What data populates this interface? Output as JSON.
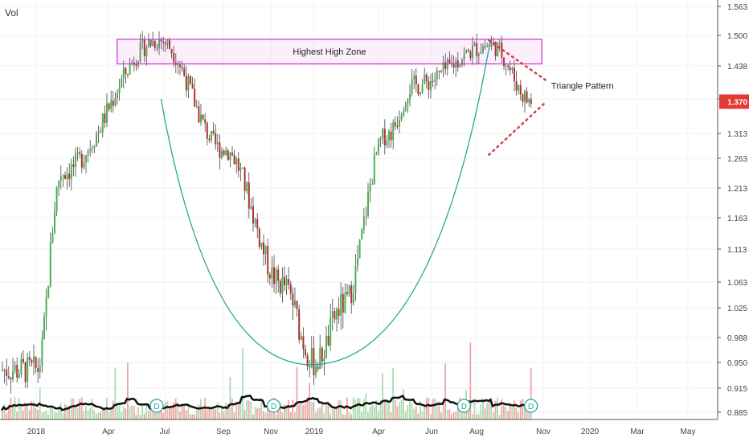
{
  "chart_data": {
    "type": "candlestick",
    "indicator_label": "Vol",
    "y_ticks": [
      "1.563",
      "1.500",
      "1.438",
      "1.375",
      "1.313",
      "1.263",
      "1.213",
      "1.163",
      "1.113",
      "1.063",
      "1.025",
      "0.988",
      "0.950",
      "0.915",
      "0.885"
    ],
    "x_ticks": [
      "2018",
      "Apr",
      "Jul",
      "Sep",
      "Nov",
      "2019",
      "Apr",
      "Jun",
      "Aug",
      "Nov",
      "2020",
      "Mar",
      "May"
    ],
    "last_price": "1.370",
    "last_price_color": "#e53935",
    "up_color": "#4caf50",
    "down_color": "#a93232",
    "zone_label": "Highest High Zone",
    "zone_color": "#cc33cc",
    "triangle_label": "Triangle Pattern",
    "triangle_color": "#cc4444",
    "cup_color": "#26a69a",
    "dividend_marker": "D",
    "dividend_count": 4,
    "key_levels": [
      {
        "date": "2018-01-01",
        "price": 0.94
      },
      {
        "date": "2018-02-01",
        "price": 1.24
      },
      {
        "date": "2018-06-20",
        "price": 1.49
      },
      {
        "date": "2018-09-01",
        "price": 1.28
      },
      {
        "date": "2018-11-15",
        "price": 1.06
      },
      {
        "date": "2019-01-01",
        "price": 0.95
      },
      {
        "date": "2019-02-10",
        "price": 1.03
      },
      {
        "date": "2019-04-10",
        "price": 1.31
      },
      {
        "date": "2019-05-10",
        "price": 1.4
      },
      {
        "date": "2019-08-20",
        "price": 1.48
      },
      {
        "date": "2019-10-15",
        "price": 1.37
      }
    ]
  }
}
